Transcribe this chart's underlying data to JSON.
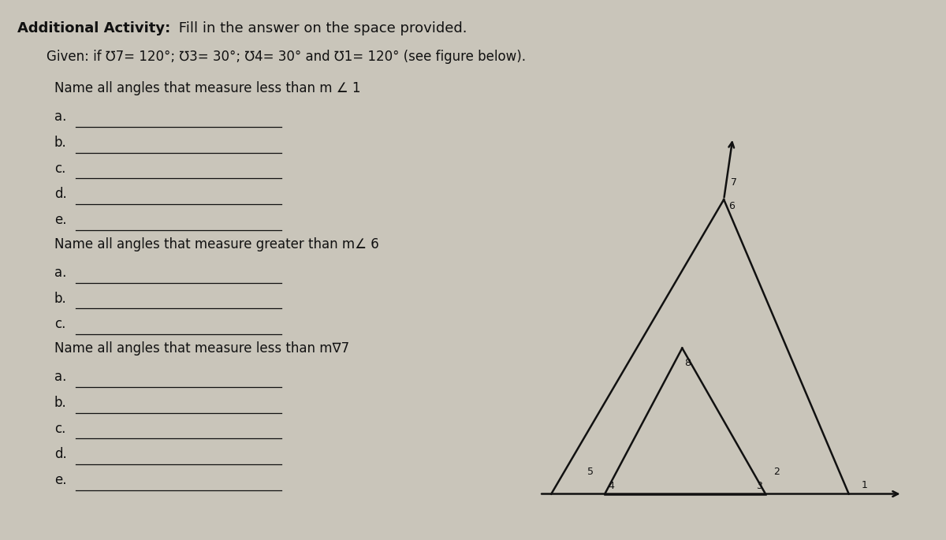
{
  "bg_color": "#c9c5ba",
  "paper_color": "#d8d4ca",
  "title_bold": "Additional Activity:",
  "title_normal": " Fill in the answer on the space provided.",
  "given_text": "Given: if ℧7= 120°; ℧3= 30°; ℧4= 30° and ℧1= 120° (see figure below).",
  "section1_title": "Name all angles that measure less than m ∠ 1",
  "section1_items": [
    "a.",
    "b.",
    "c.",
    "d.",
    "e."
  ],
  "section2_title": "Name all angles that measure greater than m∠ 6",
  "section2_items": [
    "a.",
    "b.",
    "c."
  ],
  "section3_title": "Name all angles that measure less than m∇7",
  "section3_items": [
    "a.",
    "b.",
    "c.",
    "d.",
    "e."
  ],
  "line_color": "#111111",
  "text_color": "#111111",
  "line_width": 1.8,
  "fig_width": 12.0,
  "fig_height": 6.85
}
